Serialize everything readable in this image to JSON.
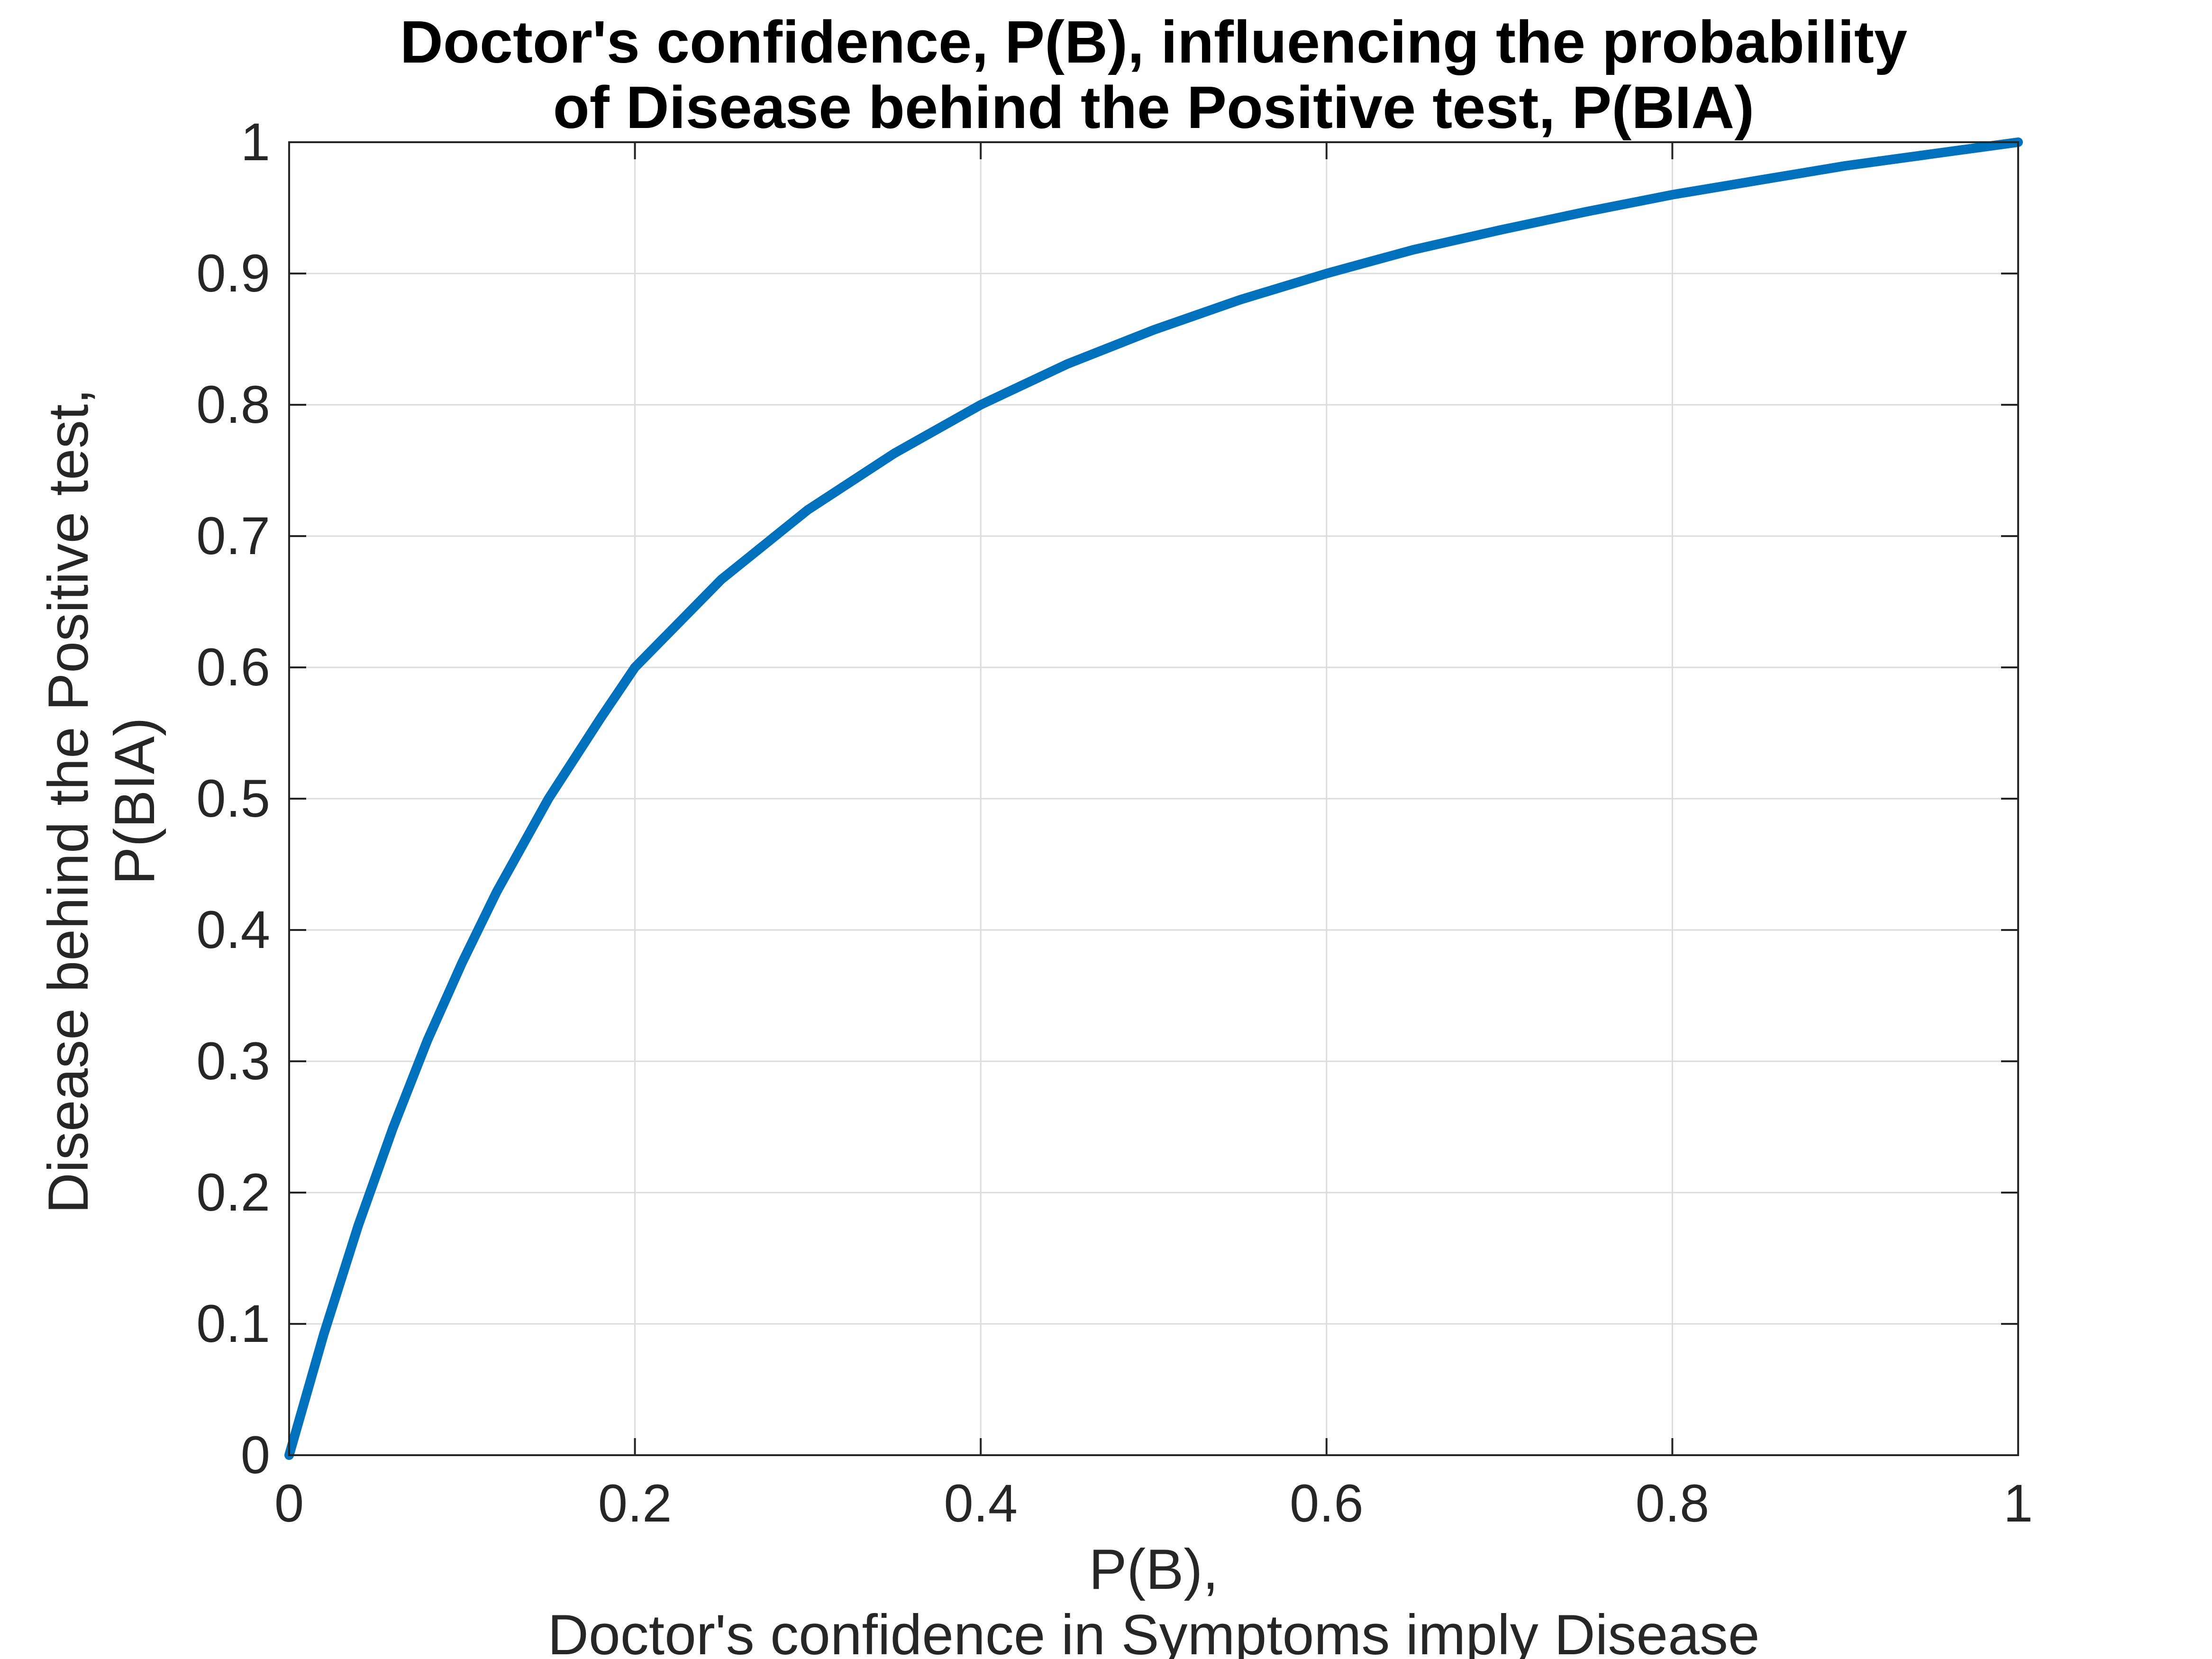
{
  "chart_data": {
    "type": "line",
    "title": [
      "Doctor's confidence, P(B), influencing the probability",
      "of Disease behind the Positive test, P(BIA)"
    ],
    "xlabel": [
      "P(B),",
      "Doctor's confidence in Symptoms imply Disease"
    ],
    "ylabel": [
      "Disease behind the Positive test,",
      "P(BIA)"
    ],
    "xlim": [
      0,
      1
    ],
    "ylim": [
      0,
      1
    ],
    "xticks": [
      0,
      0.2,
      0.4,
      0.6,
      0.8,
      1
    ],
    "xtick_labels": [
      "0",
      "0.2",
      "0.4",
      "0.6",
      "0.8",
      "1"
    ],
    "yticks": [
      0,
      0.1,
      0.2,
      0.3,
      0.4,
      0.5,
      0.6,
      0.7,
      0.8,
      0.9,
      1
    ],
    "ytick_labels": [
      "0",
      "0.1",
      "0.2",
      "0.3",
      "0.4",
      "0.5",
      "0.6",
      "0.7",
      "0.8",
      "0.9",
      "1"
    ],
    "grid": true,
    "series": [
      {
        "color": "#0072BD",
        "x": [
          0,
          0.02,
          0.04,
          0.06,
          0.08,
          0.1,
          0.12,
          0.15,
          0.18,
          0.2,
          0.25,
          0.3,
          0.35,
          0.4,
          0.45,
          0.5,
          0.55,
          0.6,
          0.65,
          0.7,
          0.75,
          0.8,
          0.85,
          0.9,
          0.95,
          1
        ],
        "y": [
          0,
          0.092,
          0.175,
          0.249,
          0.316,
          0.375,
          0.429,
          0.5,
          0.561,
          0.6,
          0.667,
          0.72,
          0.763,
          0.8,
          0.831,
          0.857,
          0.88,
          0.9,
          0.918,
          0.933,
          0.947,
          0.96,
          0.971,
          0.982,
          0.991,
          1
        ]
      }
    ]
  }
}
